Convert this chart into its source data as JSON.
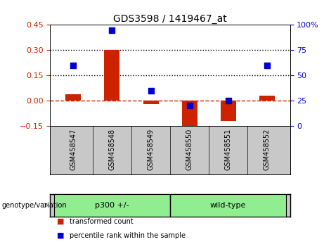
{
  "title": "GDS3598 / 1419467_at",
  "samples": [
    "GSM458547",
    "GSM458548",
    "GSM458549",
    "GSM458550",
    "GSM458551",
    "GSM458552"
  ],
  "transformed_count": [
    0.04,
    0.3,
    -0.02,
    -0.18,
    -0.12,
    0.03
  ],
  "percentile_rank": [
    60,
    95,
    35,
    20,
    25,
    60
  ],
  "bar_color": "#cc2200",
  "dot_color": "#0000cc",
  "left_ylim": [
    -0.15,
    0.45
  ],
  "right_ylim": [
    0,
    100
  ],
  "left_yticks": [
    -0.15,
    0.0,
    0.15,
    0.3,
    0.45
  ],
  "right_yticks": [
    0,
    25,
    50,
    75,
    100
  ],
  "hline_dotted": [
    0.15,
    0.3
  ],
  "hline_dashed": 0.0,
  "groups": [
    {
      "label": "p300 +/-",
      "indices": [
        0,
        1,
        2
      ],
      "color": "#90ee90"
    },
    {
      "label": "wild-type",
      "indices": [
        3,
        4,
        5
      ],
      "color": "#90ee90"
    }
  ],
  "group_label_prefix": "genotype/variation",
  "legend_items": [
    {
      "label": "transformed count",
      "color": "#cc2200"
    },
    {
      "label": "percentile rank within the sample",
      "color": "#0000cc"
    }
  ],
  "bg_color": "#ffffff",
  "plot_bg_color": "#ffffff",
  "tick_label_color_left": "#cc2200",
  "tick_label_color_right": "#0000cc",
  "bar_width": 0.4,
  "dot_size": 40,
  "xlab_bg": "#c8c8c8",
  "group_bg": "#c8c8c8"
}
